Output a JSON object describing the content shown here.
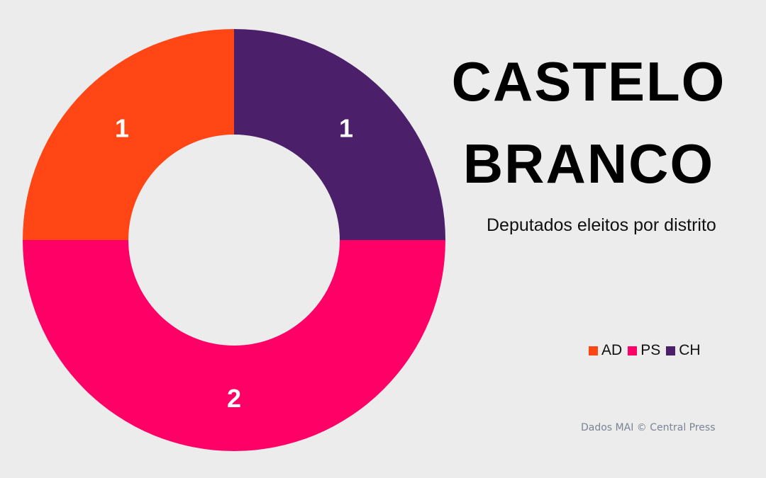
{
  "title": {
    "line1": "CASTELO",
    "line2": "BRANCO"
  },
  "subtitle": "Deputados eleitos por distrito",
  "source": "Dados MAI  © Central Press",
  "chart_data": {
    "type": "pie",
    "variant": "donut",
    "start": "top (12 o'clock)",
    "direction": "counterclockwise",
    "legend_position": "bottom-right",
    "series": [
      {
        "name": "AD",
        "value": 1,
        "color": "#ff4614"
      },
      {
        "name": "PS",
        "value": 2,
        "color": "#ff0066"
      },
      {
        "name": "CH",
        "value": 1,
        "color": "#4b1f6a"
      }
    ],
    "data_labels": [
      "1",
      "2",
      "1"
    ]
  }
}
